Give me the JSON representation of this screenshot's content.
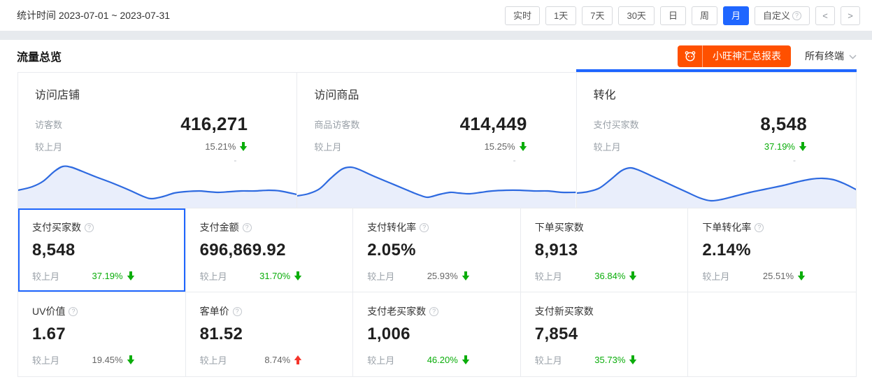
{
  "topbar": {
    "stat_time_label": "统计时间 2023-07-01 ~ 2023-07-31",
    "range_buttons": [
      {
        "label": "实时",
        "active": false,
        "has_help": false
      },
      {
        "label": "1天",
        "active": false,
        "has_help": false
      },
      {
        "label": "7天",
        "active": false,
        "has_help": false
      },
      {
        "label": "30天",
        "active": false,
        "has_help": false
      },
      {
        "label": "日",
        "active": false,
        "has_help": false
      },
      {
        "label": "周",
        "active": false,
        "has_help": false
      },
      {
        "label": "月",
        "active": true,
        "has_help": false
      },
      {
        "label": "自定义",
        "active": false,
        "has_help": true
      }
    ],
    "prev_label": "<",
    "next_label": ">"
  },
  "section": {
    "title": "流量总览",
    "report_button_label": "小旺神汇总报表",
    "terminal_dropdown": {
      "value": "所有终端"
    }
  },
  "overview_cards": [
    {
      "title": "访问店铺",
      "metric_label": "访客数",
      "value": "416,271",
      "compare_label": "较上月",
      "change": "15.21%",
      "direction": "down",
      "change_color": "gray",
      "placeholder": "-",
      "selected": false
    },
    {
      "title": "访问商品",
      "metric_label": "商品访客数",
      "value": "414,449",
      "compare_label": "较上月",
      "change": "15.25%",
      "direction": "down",
      "change_color": "gray",
      "placeholder": "-",
      "selected": false
    },
    {
      "title": "转化",
      "metric_label": "支付买家数",
      "value": "8,548",
      "compare_label": "较上月",
      "change": "37.19%",
      "direction": "down",
      "change_color": "green",
      "placeholder": "-",
      "selected": true
    }
  ],
  "metric_cells": [
    {
      "label": "支付买家数",
      "has_help": true,
      "value": "8,548",
      "compare_label": "较上月",
      "change": "37.19%",
      "direction": "down",
      "change_color": "green",
      "selected": true
    },
    {
      "label": "支付金额",
      "has_help": true,
      "value": "696,869.92",
      "compare_label": "较上月",
      "change": "31.70%",
      "direction": "down",
      "change_color": "green",
      "selected": false
    },
    {
      "label": "支付转化率",
      "has_help": true,
      "value": "2.05%",
      "compare_label": "较上月",
      "change": "25.93%",
      "direction": "down",
      "change_color": "gray",
      "selected": false
    },
    {
      "label": "下单买家数",
      "has_help": false,
      "value": "8,913",
      "compare_label": "较上月",
      "change": "36.84%",
      "direction": "down",
      "change_color": "green",
      "selected": false
    },
    {
      "label": "下单转化率",
      "has_help": true,
      "value": "2.14%",
      "compare_label": "较上月",
      "change": "25.51%",
      "direction": "down",
      "change_color": "gray",
      "selected": false
    },
    {
      "label": "UV价值",
      "has_help": true,
      "value": "1.67",
      "compare_label": "较上月",
      "change": "19.45%",
      "direction": "down",
      "change_color": "gray",
      "selected": false
    },
    {
      "label": "客单价",
      "has_help": true,
      "value": "81.52",
      "compare_label": "较上月",
      "change": "8.74%",
      "direction": "up",
      "change_color": "gray",
      "selected": false
    },
    {
      "label": "支付老买家数",
      "has_help": true,
      "value": "1,006",
      "compare_label": "较上月",
      "change": "46.20%",
      "direction": "down",
      "change_color": "green",
      "selected": false
    },
    {
      "label": "支付新买家数",
      "has_help": false,
      "value": "7,854",
      "compare_label": "较上月",
      "change": "35.73%",
      "direction": "down",
      "change_color": "green",
      "selected": false
    }
  ],
  "chart_data": [
    {
      "type": "area",
      "name": "访问店铺 访客数趋势",
      "x_unit": "percent",
      "y_unit": "px_of_72",
      "points": [
        [
          0,
          47
        ],
        [
          5,
          42
        ],
        [
          9,
          34
        ],
        [
          13,
          20
        ],
        [
          16,
          13
        ],
        [
          19,
          14
        ],
        [
          23,
          20
        ],
        [
          28,
          28
        ],
        [
          34,
          37
        ],
        [
          40,
          47
        ],
        [
          45,
          56
        ],
        [
          48,
          59
        ],
        [
          52,
          56
        ],
        [
          56,
          51
        ],
        [
          60,
          49
        ],
        [
          65,
          48
        ],
        [
          68,
          49
        ],
        [
          72,
          50
        ],
        [
          76,
          49
        ],
        [
          80,
          48
        ],
        [
          85,
          48
        ],
        [
          90,
          47
        ],
        [
          94,
          48
        ],
        [
          100,
          53
        ]
      ]
    },
    {
      "type": "area",
      "name": "访问商品 商品访客数趋势",
      "x_unit": "percent",
      "y_unit": "px_of_72",
      "points": [
        [
          0,
          55
        ],
        [
          4,
          52
        ],
        [
          8,
          45
        ],
        [
          12,
          30
        ],
        [
          16,
          17
        ],
        [
          19,
          14
        ],
        [
          22,
          17
        ],
        [
          27,
          26
        ],
        [
          33,
          36
        ],
        [
          39,
          46
        ],
        [
          44,
          54
        ],
        [
          47,
          57
        ],
        [
          51,
          53
        ],
        [
          55,
          50
        ],
        [
          58,
          51
        ],
        [
          62,
          52
        ],
        [
          66,
          50
        ],
        [
          70,
          48
        ],
        [
          75,
          47
        ],
        [
          80,
          47
        ],
        [
          85,
          48
        ],
        [
          90,
          48
        ],
        [
          95,
          50
        ],
        [
          100,
          50
        ]
      ]
    },
    {
      "type": "area",
      "name": "转化 支付买家数趋势",
      "x_unit": "percent",
      "y_unit": "px_of_72",
      "points": [
        [
          0,
          51
        ],
        [
          4,
          49
        ],
        [
          8,
          44
        ],
        [
          12,
          32
        ],
        [
          16,
          19
        ],
        [
          19,
          15
        ],
        [
          22,
          18
        ],
        [
          27,
          27
        ],
        [
          33,
          38
        ],
        [
          39,
          49
        ],
        [
          44,
          58
        ],
        [
          48,
          62
        ],
        [
          52,
          60
        ],
        [
          57,
          55
        ],
        [
          62,
          50
        ],
        [
          68,
          45
        ],
        [
          74,
          40
        ],
        [
          79,
          35
        ],
        [
          84,
          31
        ],
        [
          88,
          30
        ],
        [
          92,
          32
        ],
        [
          96,
          38
        ],
        [
          100,
          46
        ]
      ]
    }
  ],
  "colors": {
    "accent_blue": "#1f66ff",
    "spark_line": "#2e6ae0",
    "spark_fill": "#e9eefb",
    "trend_green": "#0aad0a",
    "trend_red": "#f5352b",
    "report_orange": "#ff5000"
  }
}
